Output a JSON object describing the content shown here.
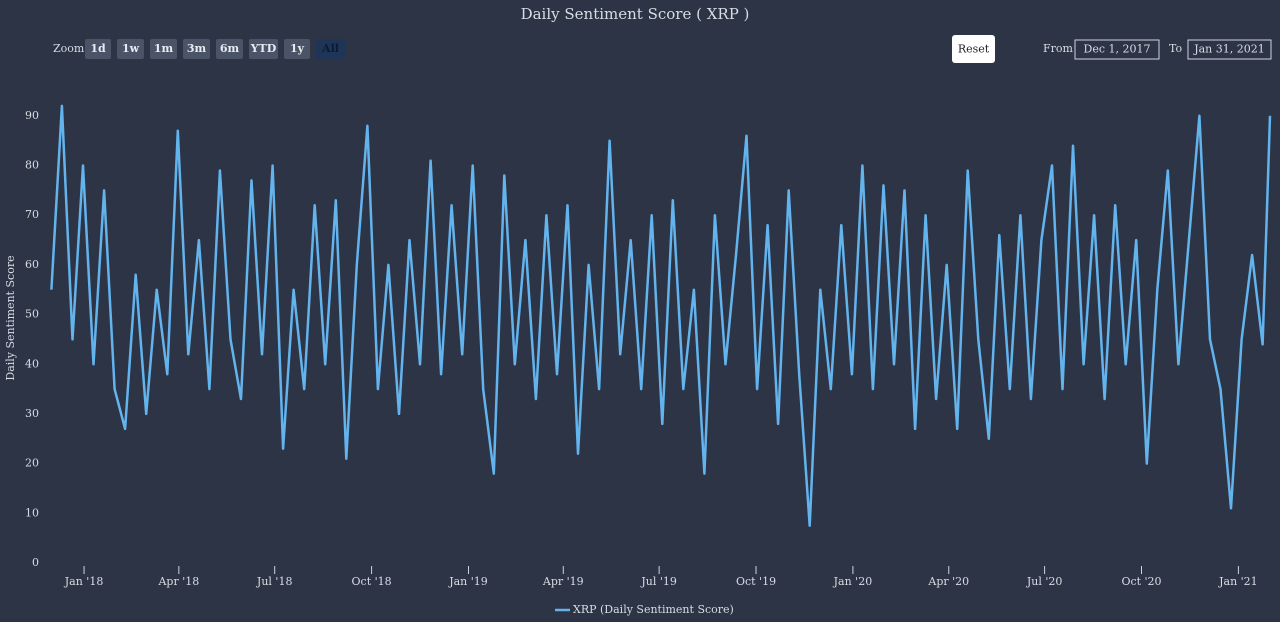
{
  "chart_data": {
    "type": "line",
    "title": "Daily Sentiment Score ( XRP )",
    "ylabel": "Daily Sentiment Score",
    "x": [
      "2017-12-01",
      "2017-12-11",
      "2017-12-21",
      "2017-12-31",
      "2018-01-10",
      "2018-01-20",
      "2018-01-30",
      "2018-02-09",
      "2018-02-19",
      "2018-03-01",
      "2018-03-11",
      "2018-03-21",
      "2018-03-31",
      "2018-04-10",
      "2018-04-20",
      "2018-04-30",
      "2018-05-10",
      "2018-05-20",
      "2018-05-30",
      "2018-06-09",
      "2018-06-19",
      "2018-06-29",
      "2018-07-09",
      "2018-07-19",
      "2018-07-29",
      "2018-08-08",
      "2018-08-18",
      "2018-08-28",
      "2018-09-07",
      "2018-09-17",
      "2018-09-27",
      "2018-10-07",
      "2018-10-17",
      "2018-10-27",
      "2018-11-06",
      "2018-11-16",
      "2018-11-26",
      "2018-12-06",
      "2018-12-16",
      "2018-12-26",
      "2019-01-05",
      "2019-01-15",
      "2019-01-25",
      "2019-02-04",
      "2019-02-14",
      "2019-02-24",
      "2019-03-06",
      "2019-03-16",
      "2019-03-26",
      "2019-04-05",
      "2019-04-15",
      "2019-04-25",
      "2019-05-05",
      "2019-05-15",
      "2019-05-25",
      "2019-06-04",
      "2019-06-14",
      "2019-06-24",
      "2019-07-04",
      "2019-07-14",
      "2019-07-24",
      "2019-08-03",
      "2019-08-13",
      "2019-08-23",
      "2019-09-02",
      "2019-09-12",
      "2019-09-22",
      "2019-10-02",
      "2019-10-12",
      "2019-10-22",
      "2019-11-01",
      "2019-11-11",
      "2019-11-21",
      "2019-12-01",
      "2019-12-11",
      "2019-12-21",
      "2019-12-31",
      "2020-01-10",
      "2020-01-20",
      "2020-01-30",
      "2020-02-09",
      "2020-02-19",
      "2020-02-29",
      "2020-03-10",
      "2020-03-20",
      "2020-03-30",
      "2020-04-09",
      "2020-04-19",
      "2020-04-29",
      "2020-05-09",
      "2020-05-19",
      "2020-05-29",
      "2020-06-08",
      "2020-06-18",
      "2020-06-28",
      "2020-07-08",
      "2020-07-18",
      "2020-07-28",
      "2020-08-07",
      "2020-08-17",
      "2020-08-27",
      "2020-09-06",
      "2020-09-16",
      "2020-09-26",
      "2020-10-06",
      "2020-10-16",
      "2020-10-26",
      "2020-11-05",
      "2020-11-15",
      "2020-11-25",
      "2020-12-05",
      "2020-12-15",
      "2020-12-25",
      "2021-01-04",
      "2021-01-14",
      "2021-01-24",
      "2021-01-31"
    ],
    "series": [
      {
        "name": "XRP (Daily Sentiment Score)",
        "color": "#63b3ed",
        "values": [
          55,
          92,
          45,
          80,
          40,
          75,
          35,
          27,
          58,
          30,
          55,
          38,
          87,
          42,
          65,
          35,
          79,
          45,
          33,
          77,
          42,
          80,
          23,
          55,
          35,
          72,
          40,
          73,
          21,
          60,
          88,
          35,
          60,
          30,
          65,
          40,
          81,
          38,
          72,
          42,
          80,
          35,
          18,
          78,
          40,
          65,
          33,
          70,
          38,
          72,
          22,
          60,
          35,
          85,
          42,
          65,
          35,
          70,
          28,
          73,
          35,
          55,
          18,
          70,
          40,
          62,
          86,
          35,
          68,
          28,
          75,
          38,
          7.5,
          55,
          35,
          68,
          38,
          80,
          35,
          76,
          40,
          75,
          27,
          70,
          33,
          60,
          27,
          79,
          45,
          25,
          66,
          35,
          70,
          33,
          65,
          80,
          35,
          84,
          40,
          70,
          33,
          72,
          40,
          65,
          20,
          55,
          79,
          40,
          65,
          90,
          45,
          35,
          11,
          45,
          62,
          44,
          90
        ]
      }
    ],
    "xlim": [
      "2017-12-01",
      "2021-01-31"
    ],
    "xticks": [
      {
        "value": "2018-01-01",
        "label": "Jan '18"
      },
      {
        "value": "2018-04-01",
        "label": "Apr '18"
      },
      {
        "value": "2018-07-01",
        "label": "Jul '18"
      },
      {
        "value": "2018-10-01",
        "label": "Oct '18"
      },
      {
        "value": "2019-01-01",
        "label": "Jan '19"
      },
      {
        "value": "2019-04-01",
        "label": "Apr '19"
      },
      {
        "value": "2019-07-01",
        "label": "Jul '19"
      },
      {
        "value": "2019-10-01",
        "label": "Oct '19"
      },
      {
        "value": "2020-01-01",
        "label": "Jan '20"
      },
      {
        "value": "2020-04-01",
        "label": "Apr '20"
      },
      {
        "value": "2020-07-01",
        "label": "Jul '20"
      },
      {
        "value": "2020-10-01",
        "label": "Oct '20"
      },
      {
        "value": "2021-01-01",
        "label": "Jan '21"
      }
    ],
    "ylim": [
      0,
      95
    ],
    "yticks": [
      0,
      10,
      20,
      30,
      40,
      50,
      60,
      70,
      80,
      90
    ]
  },
  "range_selector": {
    "zoom_label": "Zoom",
    "buttons": [
      "1d",
      "1w",
      "1m",
      "3m",
      "6m",
      "YTD",
      "1y",
      "All"
    ],
    "selected": 7,
    "reset": "Reset",
    "from_label": "From",
    "from": "Dec 1, 2017",
    "to_label": "To",
    "to": "Jan 31, 2021"
  }
}
